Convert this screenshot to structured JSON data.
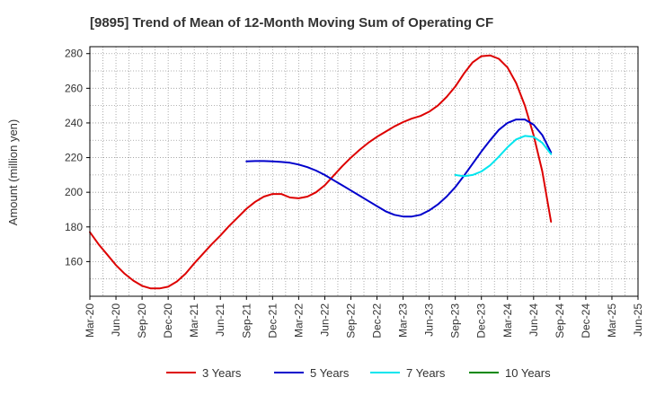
{
  "chart_data": {
    "type": "line",
    "title": "[9895]  Trend of Mean of 12-Month Moving Sum of Operating CF",
    "xlabel": "",
    "ylabel": "Amount (million yen)",
    "ylim": [
      140,
      284
    ],
    "yticks": [
      160,
      180,
      200,
      220,
      240,
      260,
      280
    ],
    "grid": true,
    "legend_position": "bottom",
    "x_start": "Mar-20",
    "x_tick_labels": [
      "Mar-20",
      "Jun-20",
      "Sep-20",
      "Dec-20",
      "Mar-21",
      "Jun-21",
      "Sep-21",
      "Dec-21",
      "Mar-22",
      "Jun-22",
      "Sep-22",
      "Dec-22",
      "Mar-23",
      "Jun-23",
      "Sep-23",
      "Dec-23",
      "Mar-24",
      "Jun-24",
      "Sep-24",
      "Dec-24",
      "Mar-25",
      "Jun-25"
    ],
    "series": [
      {
        "name": "3 Years",
        "color": "#dd0000",
        "x": [
          0,
          1,
          2,
          3,
          4,
          5,
          6,
          7,
          8,
          9,
          10,
          11,
          12,
          13,
          14,
          15,
          16,
          17,
          18,
          19,
          20,
          21,
          22,
          23,
          24,
          25,
          26,
          27,
          28,
          29,
          30,
          31,
          32,
          33,
          34,
          35,
          36,
          37,
          38,
          39,
          40,
          41,
          42,
          43,
          44,
          45,
          46,
          47,
          48,
          49,
          50,
          51,
          52,
          53,
          54,
          55,
          56,
          57,
          58,
          59,
          60
        ],
        "values": [
          177,
          170,
          164,
          158,
          153,
          149,
          146,
          144.5,
          144.5,
          145.5,
          148.5,
          153,
          159,
          164.5,
          170,
          175,
          180.5,
          185.5,
          190.5,
          194.5,
          197.5,
          199,
          199,
          197,
          196.5,
          197.5,
          200,
          204,
          209.5,
          215,
          220,
          224.5,
          228.5,
          232,
          235,
          238,
          240.5,
          242.5,
          244,
          246.5,
          250,
          255,
          261,
          268.5,
          275,
          278.5,
          279,
          277,
          272,
          263,
          250,
          233,
          212,
          183,
          null,
          null,
          null,
          null,
          null,
          null,
          null
        ]
      },
      {
        "name": "5 Years",
        "color": "#0000cc",
        "x": [
          18,
          19,
          20,
          21,
          22,
          23,
          24,
          25,
          26,
          27,
          28,
          29,
          30,
          31,
          32,
          33,
          34,
          35,
          36,
          37,
          38,
          39,
          40,
          41,
          42,
          43,
          44,
          45,
          46,
          47,
          48,
          49,
          50,
          51,
          52,
          53
        ],
        "values": [
          217.8,
          218,
          218,
          217.8,
          217.5,
          217,
          216,
          214.5,
          212.5,
          210,
          207,
          204,
          201,
          198,
          195,
          192,
          189,
          187,
          186,
          186,
          187,
          189.5,
          193,
          197.5,
          203,
          209.5,
          216.5,
          223.5,
          230,
          236,
          240,
          242,
          242,
          239,
          233,
          223
        ]
      },
      {
        "name": "7 Years",
        "color": "#00e5ee",
        "x": [
          42,
          43,
          44,
          45,
          46,
          47,
          48,
          49,
          50,
          51,
          52,
          53
        ],
        "values": [
          210,
          209.3,
          210,
          212,
          215.5,
          220.5,
          226,
          230.5,
          232.5,
          232,
          228.5,
          222
        ]
      },
      {
        "name": "10 Years",
        "color": "#008800",
        "x": [],
        "values": []
      }
    ]
  }
}
